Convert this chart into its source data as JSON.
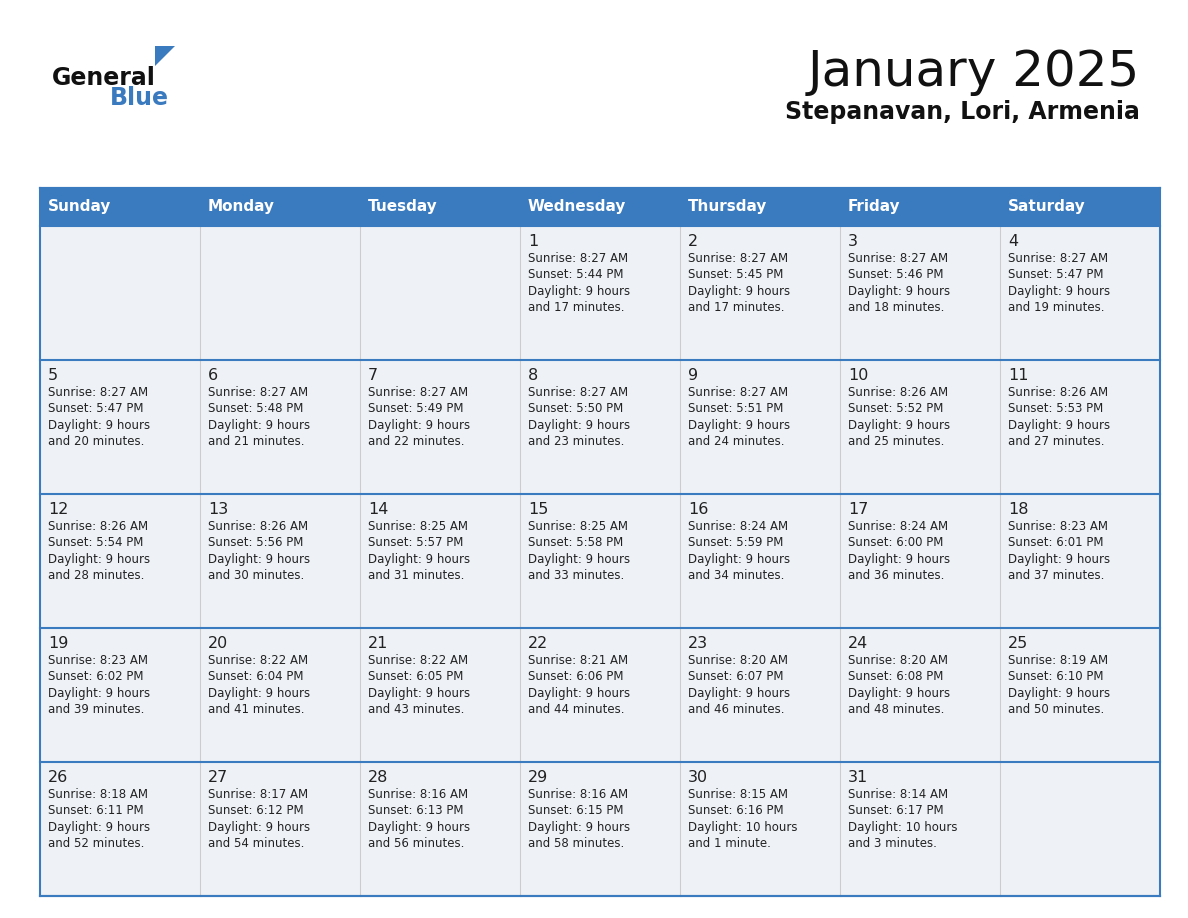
{
  "title": "January 2025",
  "subtitle": "Stepanavan, Lori, Armenia",
  "header_color": "#3a7abf",
  "header_text_color": "#ffffff",
  "cell_bg": "#eef2f7",
  "day_names": [
    "Sunday",
    "Monday",
    "Tuesday",
    "Wednesday",
    "Thursday",
    "Friday",
    "Saturday"
  ],
  "days": [
    {
      "day": 1,
      "col": 3,
      "row": 0,
      "sunrise": "8:27 AM",
      "sunset": "5:44 PM",
      "daylight_line1": "Daylight: 9 hours",
      "daylight_line2": "and 17 minutes."
    },
    {
      "day": 2,
      "col": 4,
      "row": 0,
      "sunrise": "8:27 AM",
      "sunset": "5:45 PM",
      "daylight_line1": "Daylight: 9 hours",
      "daylight_line2": "and 17 minutes."
    },
    {
      "day": 3,
      "col": 5,
      "row": 0,
      "sunrise": "8:27 AM",
      "sunset": "5:46 PM",
      "daylight_line1": "Daylight: 9 hours",
      "daylight_line2": "and 18 minutes."
    },
    {
      "day": 4,
      "col": 6,
      "row": 0,
      "sunrise": "8:27 AM",
      "sunset": "5:47 PM",
      "daylight_line1": "Daylight: 9 hours",
      "daylight_line2": "and 19 minutes."
    },
    {
      "day": 5,
      "col": 0,
      "row": 1,
      "sunrise": "8:27 AM",
      "sunset": "5:47 PM",
      "daylight_line1": "Daylight: 9 hours",
      "daylight_line2": "and 20 minutes."
    },
    {
      "day": 6,
      "col": 1,
      "row": 1,
      "sunrise": "8:27 AM",
      "sunset": "5:48 PM",
      "daylight_line1": "Daylight: 9 hours",
      "daylight_line2": "and 21 minutes."
    },
    {
      "day": 7,
      "col": 2,
      "row": 1,
      "sunrise": "8:27 AM",
      "sunset": "5:49 PM",
      "daylight_line1": "Daylight: 9 hours",
      "daylight_line2": "and 22 minutes."
    },
    {
      "day": 8,
      "col": 3,
      "row": 1,
      "sunrise": "8:27 AM",
      "sunset": "5:50 PM",
      "daylight_line1": "Daylight: 9 hours",
      "daylight_line2": "and 23 minutes."
    },
    {
      "day": 9,
      "col": 4,
      "row": 1,
      "sunrise": "8:27 AM",
      "sunset": "5:51 PM",
      "daylight_line1": "Daylight: 9 hours",
      "daylight_line2": "and 24 minutes."
    },
    {
      "day": 10,
      "col": 5,
      "row": 1,
      "sunrise": "8:26 AM",
      "sunset": "5:52 PM",
      "daylight_line1": "Daylight: 9 hours",
      "daylight_line2": "and 25 minutes."
    },
    {
      "day": 11,
      "col": 6,
      "row": 1,
      "sunrise": "8:26 AM",
      "sunset": "5:53 PM",
      "daylight_line1": "Daylight: 9 hours",
      "daylight_line2": "and 27 minutes."
    },
    {
      "day": 12,
      "col": 0,
      "row": 2,
      "sunrise": "8:26 AM",
      "sunset": "5:54 PM",
      "daylight_line1": "Daylight: 9 hours",
      "daylight_line2": "and 28 minutes."
    },
    {
      "day": 13,
      "col": 1,
      "row": 2,
      "sunrise": "8:26 AM",
      "sunset": "5:56 PM",
      "daylight_line1": "Daylight: 9 hours",
      "daylight_line2": "and 30 minutes."
    },
    {
      "day": 14,
      "col": 2,
      "row": 2,
      "sunrise": "8:25 AM",
      "sunset": "5:57 PM",
      "daylight_line1": "Daylight: 9 hours",
      "daylight_line2": "and 31 minutes."
    },
    {
      "day": 15,
      "col": 3,
      "row": 2,
      "sunrise": "8:25 AM",
      "sunset": "5:58 PM",
      "daylight_line1": "Daylight: 9 hours",
      "daylight_line2": "and 33 minutes."
    },
    {
      "day": 16,
      "col": 4,
      "row": 2,
      "sunrise": "8:24 AM",
      "sunset": "5:59 PM",
      "daylight_line1": "Daylight: 9 hours",
      "daylight_line2": "and 34 minutes."
    },
    {
      "day": 17,
      "col": 5,
      "row": 2,
      "sunrise": "8:24 AM",
      "sunset": "6:00 PM",
      "daylight_line1": "Daylight: 9 hours",
      "daylight_line2": "and 36 minutes."
    },
    {
      "day": 18,
      "col": 6,
      "row": 2,
      "sunrise": "8:23 AM",
      "sunset": "6:01 PM",
      "daylight_line1": "Daylight: 9 hours",
      "daylight_line2": "and 37 minutes."
    },
    {
      "day": 19,
      "col": 0,
      "row": 3,
      "sunrise": "8:23 AM",
      "sunset": "6:02 PM",
      "daylight_line1": "Daylight: 9 hours",
      "daylight_line2": "and 39 minutes."
    },
    {
      "day": 20,
      "col": 1,
      "row": 3,
      "sunrise": "8:22 AM",
      "sunset": "6:04 PM",
      "daylight_line1": "Daylight: 9 hours",
      "daylight_line2": "and 41 minutes."
    },
    {
      "day": 21,
      "col": 2,
      "row": 3,
      "sunrise": "8:22 AM",
      "sunset": "6:05 PM",
      "daylight_line1": "Daylight: 9 hours",
      "daylight_line2": "and 43 minutes."
    },
    {
      "day": 22,
      "col": 3,
      "row": 3,
      "sunrise": "8:21 AM",
      "sunset": "6:06 PM",
      "daylight_line1": "Daylight: 9 hours",
      "daylight_line2": "and 44 minutes."
    },
    {
      "day": 23,
      "col": 4,
      "row": 3,
      "sunrise": "8:20 AM",
      "sunset": "6:07 PM",
      "daylight_line1": "Daylight: 9 hours",
      "daylight_line2": "and 46 minutes."
    },
    {
      "day": 24,
      "col": 5,
      "row": 3,
      "sunrise": "8:20 AM",
      "sunset": "6:08 PM",
      "daylight_line1": "Daylight: 9 hours",
      "daylight_line2": "and 48 minutes."
    },
    {
      "day": 25,
      "col": 6,
      "row": 3,
      "sunrise": "8:19 AM",
      "sunset": "6:10 PM",
      "daylight_line1": "Daylight: 9 hours",
      "daylight_line2": "and 50 minutes."
    },
    {
      "day": 26,
      "col": 0,
      "row": 4,
      "sunrise": "8:18 AM",
      "sunset": "6:11 PM",
      "daylight_line1": "Daylight: 9 hours",
      "daylight_line2": "and 52 minutes."
    },
    {
      "day": 27,
      "col": 1,
      "row": 4,
      "sunrise": "8:17 AM",
      "sunset": "6:12 PM",
      "daylight_line1": "Daylight: 9 hours",
      "daylight_line2": "and 54 minutes."
    },
    {
      "day": 28,
      "col": 2,
      "row": 4,
      "sunrise": "8:16 AM",
      "sunset": "6:13 PM",
      "daylight_line1": "Daylight: 9 hours",
      "daylight_line2": "and 56 minutes."
    },
    {
      "day": 29,
      "col": 3,
      "row": 4,
      "sunrise": "8:16 AM",
      "sunset": "6:15 PM",
      "daylight_line1": "Daylight: 9 hours",
      "daylight_line2": "and 58 minutes."
    },
    {
      "day": 30,
      "col": 4,
      "row": 4,
      "sunrise": "8:15 AM",
      "sunset": "6:16 PM",
      "daylight_line1": "Daylight: 10 hours",
      "daylight_line2": "and 1 minute."
    },
    {
      "day": 31,
      "col": 5,
      "row": 4,
      "sunrise": "8:14 AM",
      "sunset": "6:17 PM",
      "daylight_line1": "Daylight: 10 hours",
      "daylight_line2": "and 3 minutes."
    }
  ],
  "logo_blue_color": "#3a7abf",
  "border_color": "#3a7abf",
  "text_color": "#222222",
  "line_color": "#3a7abf"
}
